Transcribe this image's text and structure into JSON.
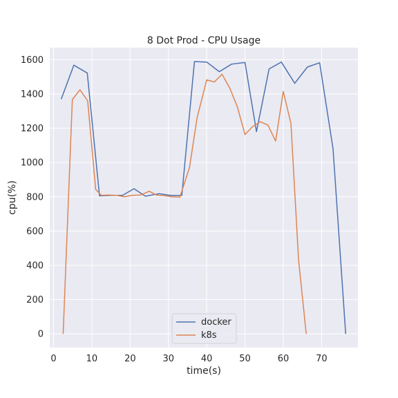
{
  "chart_data": {
    "type": "line",
    "title": "8 Dot Prod - CPU Usage",
    "xlabel": "time(s)",
    "ylabel": "cpu(%)",
    "xlim": [
      -1,
      79.5
    ],
    "ylim": [
      -80,
      1670
    ],
    "xticks": [
      0,
      10,
      20,
      30,
      40,
      50,
      60,
      70
    ],
    "yticks": [
      0,
      200,
      400,
      600,
      800,
      1000,
      1200,
      1400,
      1600
    ],
    "grid": true,
    "legend_position": "bottom-center",
    "series": [
      {
        "name": "docker",
        "color": "#4c72b0",
        "x": [
          2,
          5.3,
          8.8,
          12,
          15,
          18,
          21,
          24,
          27.5,
          30.5,
          33.5,
          36.8,
          40,
          43.3,
          46.5,
          50,
          53,
          56.3,
          59.5,
          63,
          66.3,
          69.5,
          73,
          76.3
        ],
        "y": [
          1370,
          1568,
          1522,
          805,
          808,
          808,
          847,
          803,
          818,
          808,
          808,
          1589,
          1586,
          1530,
          1574,
          1584,
          1180,
          1546,
          1586,
          1462,
          1557,
          1582,
          1080,
          0
        ]
      },
      {
        "name": "k8s",
        "color": "#dd8452",
        "x": [
          2.5,
          4.9,
          6.9,
          8.9,
          11,
          12.5,
          14.5,
          16.5,
          18.5,
          20.5,
          22.7,
          25,
          26.9,
          29,
          31,
          33,
          35.5,
          37.5,
          40,
          42,
          44,
          46,
          48,
          50,
          52,
          54,
          56,
          58,
          60,
          62,
          64,
          66
        ],
        "y": [
          0,
          1367,
          1424,
          1360,
          843,
          808,
          810,
          808,
          800,
          808,
          810,
          832,
          810,
          806,
          800,
          798,
          970,
          1262,
          1482,
          1470,
          1515,
          1435,
          1325,
          1163,
          1210,
          1238,
          1218,
          1125,
          1415,
          1228,
          430,
          0
        ]
      }
    ]
  }
}
